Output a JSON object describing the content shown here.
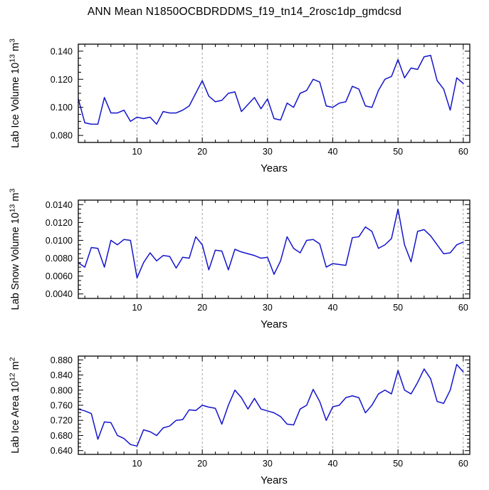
{
  "title": "ANN Mean N1850OCBDRDDMS_f19_tn14_2rosc1dp_gmdcsd",
  "line_color": "#1414cc",
  "grid_color": "#999999",
  "axis_color": "#000000",
  "chart_data": [
    {
      "type": "line",
      "title": "",
      "xlabel": "Years",
      "ylabel_parts": [
        {
          "t": "Lab Ice Volume 10"
        },
        {
          "t": "13",
          "sup": true
        },
        {
          "t": " m"
        },
        {
          "t": "3",
          "sup": true
        }
      ],
      "color": "#1414cc",
      "xlim": [
        1,
        61
      ],
      "ylim": [
        0.075,
        0.145
      ],
      "xtick_values": [
        10,
        20,
        30,
        40,
        50,
        60
      ],
      "xtick_labels": [
        "10",
        "20",
        "30",
        "40",
        "50",
        "60"
      ],
      "x_minor_step": 2,
      "ytick_values": [
        0.08,
        0.1,
        0.12,
        0.14
      ],
      "ytick_labels": [
        "0.080",
        "0.100",
        "0.120",
        "0.140"
      ],
      "y_minor_step": 0.005,
      "grid_x": [
        10,
        20,
        30,
        40,
        50,
        60
      ],
      "x_start": 1,
      "x_step": 1,
      "values": [
        0.106,
        0.089,
        0.088,
        0.088,
        0.107,
        0.096,
        0.096,
        0.098,
        0.09,
        0.093,
        0.092,
        0.093,
        0.088,
        0.097,
        0.096,
        0.096,
        0.098,
        0.101,
        0.11,
        0.119,
        0.108,
        0.104,
        0.105,
        0.11,
        0.111,
        0.097,
        0.102,
        0.107,
        0.099,
        0.106,
        0.092,
        0.091,
        0.103,
        0.1,
        0.11,
        0.112,
        0.12,
        0.118,
        0.101,
        0.1,
        0.103,
        0.104,
        0.115,
        0.113,
        0.101,
        0.1,
        0.112,
        0.12,
        0.122,
        0.134,
        0.121,
        0.128,
        0.127,
        0.136,
        0.137,
        0.119,
        0.113,
        0.098,
        0.121,
        0.117
      ]
    },
    {
      "type": "line",
      "title": "",
      "xlabel": "Years",
      "ylabel_parts": [
        {
          "t": "Lab Snow Volume 10"
        },
        {
          "t": "13",
          "sup": true
        },
        {
          "t": " m"
        },
        {
          "t": "3",
          "sup": true
        }
      ],
      "color": "#1414cc",
      "xlim": [
        1,
        61
      ],
      "ylim": [
        0.0035,
        0.0145
      ],
      "xtick_values": [
        10,
        20,
        30,
        40,
        50,
        60
      ],
      "xtick_labels": [
        "10",
        "20",
        "30",
        "40",
        "50",
        "60"
      ],
      "x_minor_step": 2,
      "ytick_values": [
        0.004,
        0.006,
        0.008,
        0.01,
        0.012,
        0.014
      ],
      "ytick_labels": [
        "0.0040",
        "0.0060",
        "0.0080",
        "0.0100",
        "0.0120",
        "0.0140"
      ],
      "y_minor_step": 0.0005,
      "grid_x": [
        10,
        20,
        30,
        40,
        50,
        60
      ],
      "x_start": 1,
      "x_step": 1,
      "values": [
        0.0075,
        0.007,
        0.0092,
        0.0091,
        0.007,
        0.01,
        0.0095,
        0.0101,
        0.01,
        0.0058,
        0.0075,
        0.0086,
        0.0077,
        0.0083,
        0.0082,
        0.0069,
        0.0081,
        0.008,
        0.0104,
        0.0095,
        0.0067,
        0.0089,
        0.0088,
        0.0067,
        0.009,
        0.0087,
        0.0085,
        0.0083,
        0.008,
        0.0081,
        0.0062,
        0.0077,
        0.0104,
        0.0091,
        0.0086,
        0.01,
        0.0101,
        0.0096,
        0.007,
        0.0074,
        0.0073,
        0.0072,
        0.0103,
        0.0104,
        0.0115,
        0.011,
        0.0091,
        0.0095,
        0.0102,
        0.0135,
        0.0095,
        0.0076,
        0.011,
        0.0112,
        0.0105,
        0.0095,
        0.0085,
        0.0086,
        0.0095,
        0.0098
      ]
    },
    {
      "type": "line",
      "title": "",
      "xlabel": "Years",
      "ylabel_parts": [
        {
          "t": "Lab Ice Area 10"
        },
        {
          "t": "12",
          "sup": true
        },
        {
          "t": " m"
        },
        {
          "t": "2",
          "sup": true
        }
      ],
      "color": "#1414cc",
      "xlim": [
        1,
        61
      ],
      "ylim": [
        0.63,
        0.89
      ],
      "xtick_values": [
        10,
        20,
        30,
        40,
        50,
        60
      ],
      "xtick_labels": [
        "10",
        "20",
        "30",
        "40",
        "50",
        "60"
      ],
      "x_minor_step": 2,
      "ytick_values": [
        0.64,
        0.68,
        0.72,
        0.76,
        0.8,
        0.84,
        0.88
      ],
      "ytick_labels": [
        "0.640",
        "0.680",
        "0.720",
        "0.760",
        "0.800",
        "0.840",
        "0.880"
      ],
      "y_minor_step": 0.01,
      "grid_x": [
        10,
        20,
        30,
        40,
        50,
        60
      ],
      "x_start": 1,
      "x_step": 1,
      "values": [
        0.75,
        0.745,
        0.738,
        0.67,
        0.716,
        0.714,
        0.68,
        0.672,
        0.656,
        0.652,
        0.695,
        0.69,
        0.68,
        0.7,
        0.705,
        0.72,
        0.722,
        0.748,
        0.746,
        0.76,
        0.755,
        0.752,
        0.71,
        0.76,
        0.8,
        0.78,
        0.75,
        0.778,
        0.75,
        0.745,
        0.74,
        0.73,
        0.71,
        0.708,
        0.75,
        0.76,
        0.802,
        0.77,
        0.72,
        0.756,
        0.76,
        0.78,
        0.785,
        0.78,
        0.74,
        0.76,
        0.79,
        0.8,
        0.79,
        0.852,
        0.8,
        0.79,
        0.82,
        0.856,
        0.83,
        0.77,
        0.765,
        0.8,
        0.868,
        0.848
      ]
    }
  ]
}
